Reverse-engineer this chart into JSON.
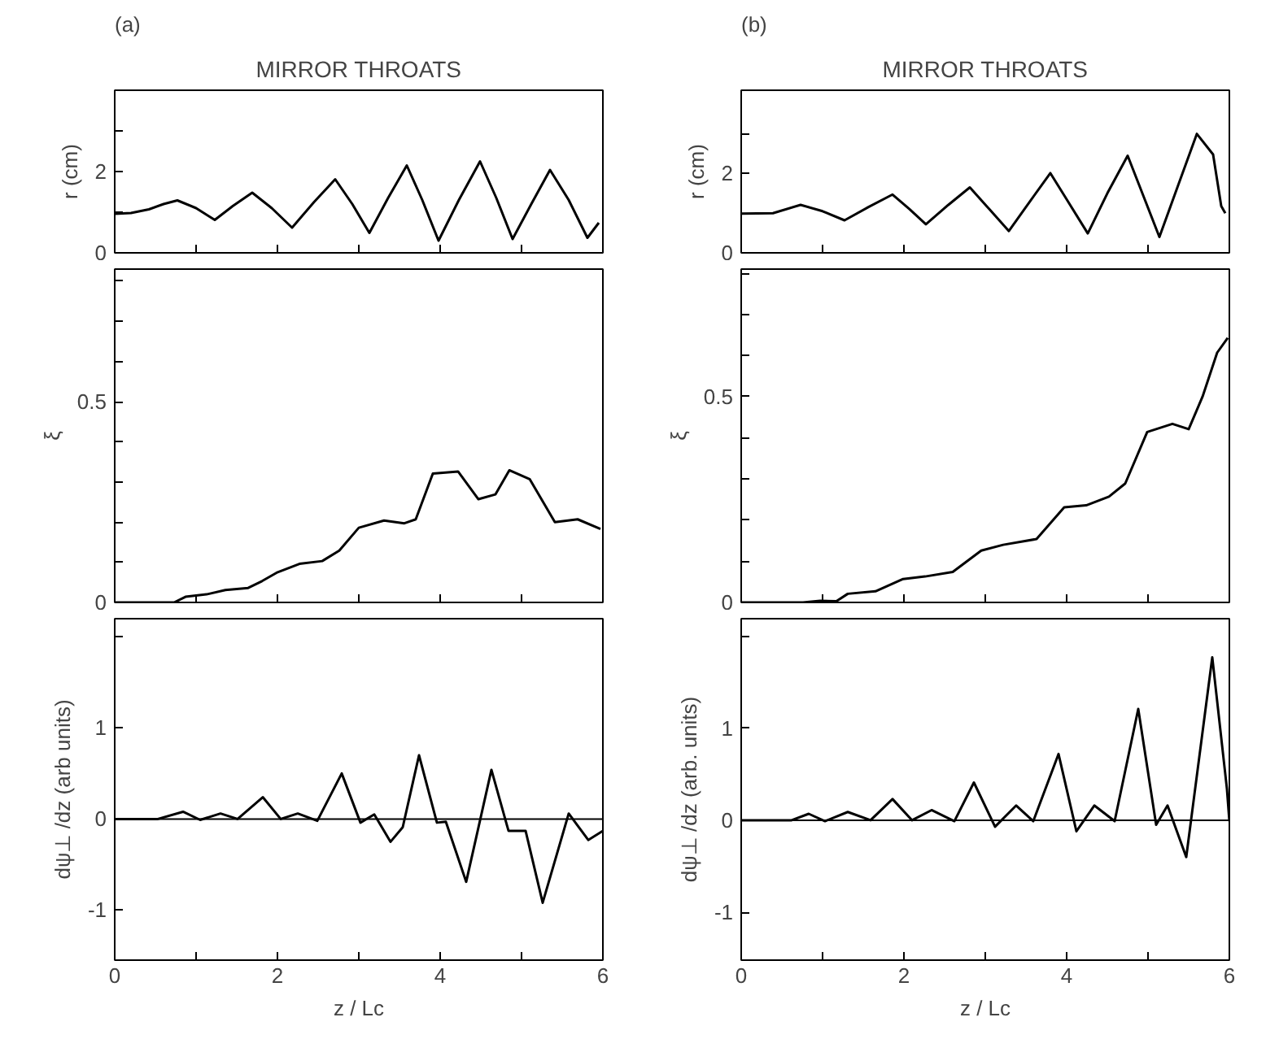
{
  "chart_data": [
    {
      "type": "line",
      "title": "MIRROR THROATS",
      "annotations": [
        "(a)"
      ],
      "ylabel": "r (cm)",
      "tick_labels": "y",
      "xlim": [
        0,
        6
      ],
      "xticks": [
        0,
        {
          "value": 1,
          "label": null
        },
        {
          "value": 2,
          "label": null
        },
        {
          "value": 3,
          "label": null
        },
        {
          "value": 4,
          "label": null
        },
        {
          "value": 5,
          "label": null
        },
        {
          "value": 6,
          "label": null
        }
      ],
      "ylim": [
        0,
        4
      ],
      "yticks": [
        0,
        {
          "value": 1,
          "label": null
        },
        2,
        {
          "value": 3,
          "label": null
        }
      ],
      "series": [
        {
          "color": "#000000",
          "x": [
            0,
            0.2,
            0.42,
            0.6,
            0.77,
            1.0,
            1.23,
            1.45,
            1.69,
            1.93,
            2.18,
            2.45,
            2.71,
            2.92,
            3.13,
            3.36,
            3.59,
            3.78,
            3.98,
            4.23,
            4.49,
            4.69,
            4.89,
            5.12,
            5.35,
            5.58,
            5.81,
            5.95
          ],
          "values": [
            0.96,
            0.98,
            1.07,
            1.2,
            1.29,
            1.1,
            0.81,
            1.15,
            1.48,
            1.1,
            0.62,
            1.25,
            1.81,
            1.2,
            0.49,
            1.35,
            2.15,
            1.3,
            0.3,
            1.3,
            2.25,
            1.35,
            0.34,
            1.2,
            2.04,
            1.3,
            0.37,
            0.74
          ]
        }
      ]
    },
    {
      "type": "line",
      "title": "MIRROR THROATS",
      "annotations": [
        "(b)"
      ],
      "ylabel": "r (cm)",
      "tick_labels": "y",
      "xlim": [
        0,
        6
      ],
      "xticks": [
        0,
        {
          "value": 1,
          "label": null
        },
        {
          "value": 2,
          "label": null
        },
        {
          "value": 3,
          "label": null
        },
        {
          "value": 4,
          "label": null
        },
        {
          "value": 5,
          "label": null
        },
        {
          "value": 6,
          "label": null
        }
      ],
      "ylim": [
        0,
        4.1
      ],
      "yticks": [
        0,
        {
          "value": 1,
          "label": null
        },
        2,
        {
          "value": 3,
          "label": null
        }
      ],
      "series": [
        {
          "color": "#000000",
          "x": [
            0,
            0.39,
            0.73,
            1.0,
            1.27,
            1.56,
            1.86,
            2.07,
            2.27,
            2.54,
            2.81,
            3.05,
            3.29,
            3.55,
            3.8,
            4.03,
            4.26,
            4.5,
            4.75,
            4.95,
            5.14,
            5.37,
            5.6,
            5.8,
            5.9,
            5.95
          ],
          "values": [
            0.99,
            1.0,
            1.21,
            1.05,
            0.82,
            1.15,
            1.47,
            1.1,
            0.72,
            1.2,
            1.65,
            1.1,
            0.55,
            1.3,
            2.01,
            1.25,
            0.49,
            1.5,
            2.45,
            1.4,
            0.4,
            1.7,
            3.0,
            2.48,
            1.18,
            1.0
          ]
        }
      ]
    },
    {
      "type": "line",
      "ylabel": "ξ",
      "tick_labels": "y",
      "xlim": [
        0,
        6
      ],
      "xticks": [
        0,
        {
          "value": 1,
          "label": null
        },
        {
          "value": 2,
          "label": null
        },
        {
          "value": 3,
          "label": null
        },
        {
          "value": 4,
          "label": null
        },
        {
          "value": 5,
          "label": null
        },
        {
          "value": 6,
          "label": null
        }
      ],
      "ylim": [
        0,
        0.83
      ],
      "yticks": [
        0,
        {
          "value": 0.1,
          "label": null
        },
        {
          "value": 0.2,
          "label": null
        },
        {
          "value": 0.3,
          "label": null
        },
        {
          "value": 0.4,
          "label": null
        },
        0.5,
        {
          "value": 0.6,
          "label": null
        },
        {
          "value": 0.7,
          "label": null
        },
        {
          "value": 0.8,
          "label": null
        }
      ],
      "series": [
        {
          "color": "#000000",
          "x": [
            0,
            0.73,
            0.87,
            1.15,
            1.36,
            1.64,
            1.81,
            1.99,
            2.27,
            2.55,
            2.76,
            3.0,
            3.31,
            3.56,
            3.7,
            3.91,
            4.22,
            4.47,
            4.68,
            4.85,
            5.1,
            5.41,
            5.69,
            5.97
          ],
          "values": [
            0,
            0,
            0.014,
            0.021,
            0.031,
            0.036,
            0.053,
            0.074,
            0.096,
            0.103,
            0.129,
            0.186,
            0.204,
            0.197,
            0.207,
            0.321,
            0.326,
            0.257,
            0.269,
            0.329,
            0.307,
            0.2,
            0.207,
            0.183
          ]
        }
      ]
    },
    {
      "type": "line",
      "ylabel": "ξ",
      "tick_labels": "y",
      "xlim": [
        0,
        6
      ],
      "xticks": [
        0,
        {
          "value": 1,
          "label": null
        },
        {
          "value": 2,
          "label": null
        },
        {
          "value": 3,
          "label": null
        },
        {
          "value": 4,
          "label": null
        },
        {
          "value": 5,
          "label": null
        },
        {
          "value": 6,
          "label": null
        }
      ],
      "ylim": [
        0,
        0.81
      ],
      "yticks": [
        0,
        {
          "value": 0.1,
          "label": null
        },
        {
          "value": 0.2,
          "label": null
        },
        {
          "value": 0.3,
          "label": null
        },
        {
          "value": 0.4,
          "label": null
        },
        0.5,
        {
          "value": 0.6,
          "label": null
        },
        {
          "value": 0.7,
          "label": null
        },
        {
          "value": 0.8,
          "label": null
        }
      ],
      "series": [
        {
          "color": "#000000",
          "x": [
            0,
            0.76,
            0.97,
            1.17,
            1.31,
            1.65,
            1.99,
            2.26,
            2.6,
            2.95,
            3.22,
            3.63,
            3.97,
            4.24,
            4.52,
            4.72,
            4.99,
            5.3,
            5.5,
            5.67,
            5.85,
            5.98
          ],
          "values": [
            0,
            0,
            0.004,
            0.003,
            0.021,
            0.027,
            0.057,
            0.063,
            0.074,
            0.126,
            0.14,
            0.154,
            0.231,
            0.236,
            0.257,
            0.289,
            0.414,
            0.434,
            0.421,
            0.5,
            0.607,
            0.643
          ]
        }
      ]
    },
    {
      "type": "line",
      "xlabel": "z / Lc",
      "ylabel": "dψ⊥ /dz (arb units)",
      "xlim": [
        0,
        6
      ],
      "xticks": [
        0,
        {
          "value": 1,
          "label": null
        },
        2,
        {
          "value": 3,
          "label": null
        },
        4,
        {
          "value": 5,
          "label": null
        },
        6
      ],
      "ylim": [
        -1.55,
        2.2
      ],
      "yticks": [
        -1,
        0,
        1,
        {
          "value": 2,
          "label": null
        }
      ],
      "ref_lines": [
        {
          "axis": "y",
          "value": 0,
          "color": "#000000"
        }
      ],
      "series": [
        {
          "color": "#000000",
          "x": [
            0,
            0.53,
            0.84,
            1.05,
            1.3,
            1.51,
            1.82,
            2.04,
            2.25,
            2.49,
            2.79,
            3.02,
            3.19,
            3.39,
            3.54,
            3.74,
            3.96,
            4.07,
            4.32,
            4.63,
            4.84,
            5.05,
            5.26,
            5.58,
            5.82,
            6.0
          ],
          "values": [
            0,
            0,
            0.08,
            -0.01,
            0.06,
            0,
            0.24,
            0,
            0.06,
            -0.02,
            0.5,
            -0.04,
            0.05,
            -0.25,
            -0.09,
            0.7,
            -0.04,
            -0.03,
            -0.69,
            0.54,
            -0.13,
            -0.13,
            -0.92,
            0.06,
            -0.23,
            -0.13
          ]
        }
      ]
    },
    {
      "type": "line",
      "xlabel": "z / Lc",
      "ylabel": "dψ⊥ /dz (arb. units)",
      "xlim": [
        0,
        6
      ],
      "xticks": [
        0,
        {
          "value": 1,
          "label": null
        },
        2,
        {
          "value": 3,
          "label": null
        },
        4,
        {
          "value": 5,
          "label": null
        },
        6
      ],
      "ylim": [
        -1.52,
        2.19
      ],
      "yticks": [
        -1,
        0,
        1,
        {
          "value": 2,
          "label": null
        }
      ],
      "ref_lines": [
        {
          "axis": "y",
          "value": 0,
          "color": "#000000"
        }
      ],
      "series": [
        {
          "color": "#000000",
          "x": [
            0,
            0.62,
            0.83,
            1.03,
            1.31,
            1.59,
            1.86,
            2.1,
            2.34,
            2.62,
            2.86,
            3.12,
            3.38,
            3.59,
            3.9,
            4.12,
            4.34,
            4.59,
            4.88,
            5.1,
            5.24,
            5.47,
            5.79,
            5.97,
            6.0
          ],
          "values": [
            0,
            0,
            0.07,
            -0.01,
            0.09,
            0,
            0.23,
            0,
            0.11,
            -0.01,
            0.41,
            -0.07,
            0.16,
            -0.01,
            0.72,
            -0.12,
            0.16,
            -0.01,
            1.21,
            -0.05,
            0.16,
            -0.4,
            1.77,
            0.34,
            -0.01
          ]
        }
      ]
    }
  ]
}
